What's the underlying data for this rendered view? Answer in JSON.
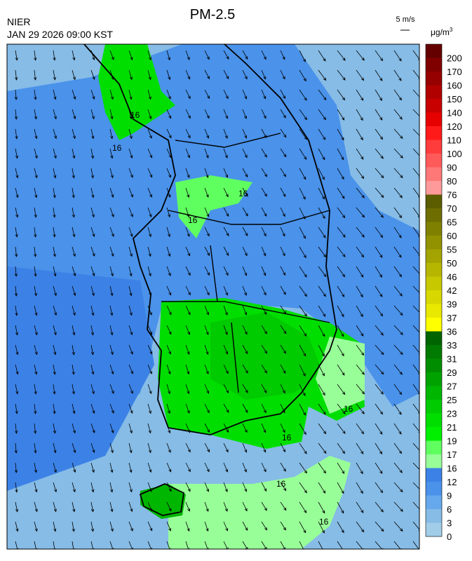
{
  "header": {
    "title": "PM-2.5",
    "agency": "NIER",
    "timestamp": "JAN 29 2026 09:00 KST",
    "wind_scale": "5 m/s",
    "unit": "μg/m",
    "unit_exp": "3"
  },
  "colorbar": {
    "levels": [
      200,
      170,
      160,
      150,
      140,
      120,
      110,
      100,
      90,
      80,
      76,
      70,
      65,
      60,
      55,
      50,
      46,
      42,
      39,
      37,
      36,
      33,
      31,
      29,
      27,
      25,
      23,
      21,
      19,
      17,
      16,
      12,
      9,
      6,
      3,
      0
    ],
    "colors": [
      "#640000",
      "#800000",
      "#960000",
      "#b00000",
      "#c80000",
      "#e60000",
      "#ff1a1a",
      "#ff3c3c",
      "#ff5a5a",
      "#ff7878",
      "#ff9a9a",
      "#5c5c00",
      "#6e6e00",
      "#808000",
      "#929200",
      "#a4a400",
      "#b6b600",
      "#c8c800",
      "#d8d800",
      "#e8e800",
      "#ffff00",
      "#006400",
      "#007a00",
      "#008e00",
      "#00a200",
      "#00b600",
      "#00ca00",
      "#00de00",
      "#00f000",
      "#60ff60",
      "#98ff98",
      "#3c82e6",
      "#4a92ea",
      "#66a8ec",
      "#86bce6",
      "#a2cde8"
    ]
  },
  "contour_labels": [
    "16",
    "16",
    "16",
    "16",
    "16",
    "16",
    "16",
    "16"
  ]
}
